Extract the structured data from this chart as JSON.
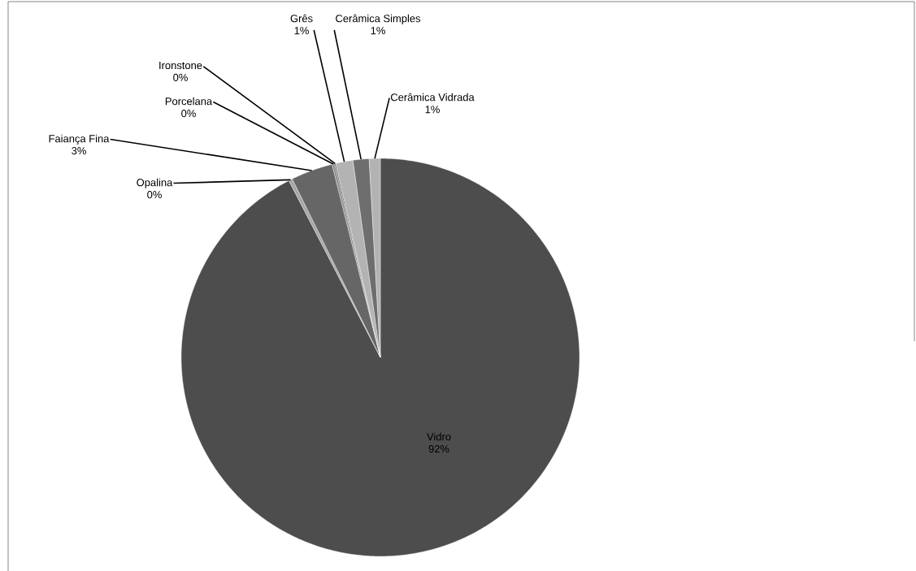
{
  "chart_data": {
    "type": "pie",
    "categories": [
      "Vidro",
      "Opalina",
      "Faiança Fina",
      "Porcelana",
      "Ironstone",
      "Grês",
      "Cerâmica Simples",
      "Cerâmica Vidrada"
    ],
    "values": [
      92.4,
      0.3,
      3.4,
      0.2,
      0.1,
      1.4,
      1.3,
      0.9
    ],
    "value_labels": [
      "92%",
      "0%",
      "3%",
      "0%",
      "0%",
      "1%",
      "1%",
      "1%"
    ],
    "colors": [
      "#4d4d4d",
      "#a6a6a6",
      "#666666",
      "#8c8c8c",
      "#555555",
      "#b3b3b3",
      "#6e6e6e",
      "#b3b3b3"
    ]
  }
}
